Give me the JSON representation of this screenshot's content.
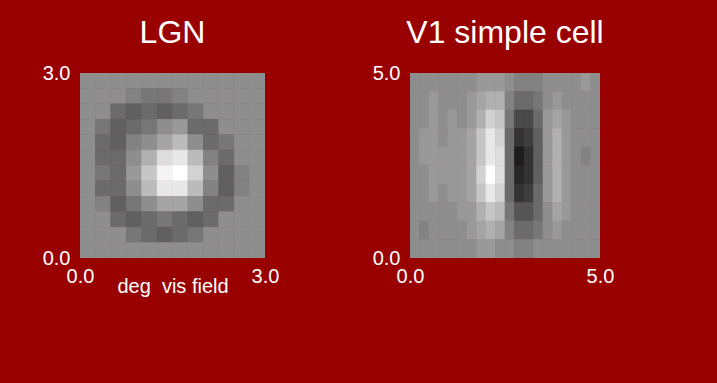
{
  "chart_data": [
    {
      "type": "heatmap",
      "title": "LGN",
      "x_label": "deg  vis field",
      "xlim": [
        0,
        3
      ],
      "ylim": [
        0,
        3
      ],
      "xticks": [
        0,
        3
      ],
      "yticks": [
        0,
        3
      ],
      "color_range": [
        -1,
        1
      ],
      "cells": [
        [
          0,
          0,
          0,
          0,
          0,
          0,
          0,
          0,
          0,
          0,
          0,
          0
        ],
        [
          0,
          0,
          0,
          -0.1,
          -0.2,
          -0.2,
          -0.1,
          0,
          0,
          0,
          0,
          0
        ],
        [
          0,
          0,
          -0.3,
          -0.4,
          -0.3,
          -0.4,
          -0.3,
          -0.2,
          0,
          0,
          0,
          0
        ],
        [
          0,
          -0.2,
          -0.4,
          -0.3,
          -0.2,
          0,
          0.1,
          -0.3,
          -0.3,
          0,
          0,
          0
        ],
        [
          0,
          -0.3,
          -0.4,
          -0.1,
          0,
          0.2,
          0.4,
          0,
          -0.3,
          -0.2,
          0,
          0
        ],
        [
          0,
          -0.3,
          -0.3,
          0,
          0.3,
          0.7,
          0.8,
          0.4,
          -0.1,
          -0.3,
          0,
          0
        ],
        [
          0,
          -0.2,
          -0.3,
          0.1,
          0.5,
          0.9,
          1.0,
          0.6,
          0,
          -0.4,
          -0.1,
          0
        ],
        [
          0,
          -0.3,
          -0.3,
          0,
          0.4,
          0.8,
          0.8,
          0.4,
          -0.1,
          -0.4,
          -0.1,
          0
        ],
        [
          0,
          -0.1,
          -0.4,
          -0.2,
          0,
          0.2,
          0.2,
          0,
          -0.3,
          -0.3,
          0,
          0
        ],
        [
          0,
          0,
          -0.3,
          -0.4,
          -0.3,
          -0.2,
          -0.3,
          -0.4,
          -0.3,
          0,
          0,
          0
        ],
        [
          0,
          0,
          0,
          -0.2,
          -0.3,
          -0.4,
          -0.3,
          -0.2,
          0,
          0,
          0,
          0
        ],
        [
          0,
          0,
          0,
          0,
          0,
          0,
          0,
          0,
          0,
          0,
          0,
          0
        ]
      ]
    },
    {
      "type": "heatmap",
      "title": "V1 simple cell",
      "xlim": [
        0,
        5
      ],
      "ylim": [
        0,
        5
      ],
      "xticks": [
        0,
        5
      ],
      "yticks": [
        0,
        5
      ],
      "color_range": [
        -1,
        1
      ],
      "cells": [
        [
          0,
          0,
          0,
          0,
          0,
          0,
          0,
          0.1,
          0.1,
          0.1,
          0,
          -0.1,
          -0.1,
          -0.1,
          0,
          0,
          0,
          0,
          0.1,
          0
        ],
        [
          0,
          0,
          0.1,
          0,
          0,
          0,
          0.1,
          0.2,
          0.3,
          0.3,
          -0.1,
          -0.3,
          -0.3,
          -0.2,
          0,
          0.1,
          0,
          0,
          0,
          0
        ],
        [
          0,
          0,
          0.1,
          0,
          0.1,
          0,
          0.1,
          0.3,
          0.6,
          0.5,
          -0.2,
          -0.6,
          -0.6,
          -0.3,
          0.1,
          0.2,
          0.1,
          0,
          0,
          0
        ],
        [
          0,
          0.1,
          0.1,
          0,
          0.1,
          0.1,
          0.2,
          0.5,
          0.8,
          0.6,
          -0.3,
          -0.8,
          -0.7,
          -0.4,
          0.1,
          0.3,
          0.1,
          0,
          0,
          0
        ],
        [
          0,
          0.1,
          0.1,
          0.1,
          0.1,
          0.1,
          0.2,
          0.5,
          0.8,
          0.7,
          -0.3,
          -1.0,
          -0.8,
          -0.4,
          0.1,
          0.3,
          0.1,
          0,
          -0.1,
          0
        ],
        [
          0,
          0,
          0.1,
          0.1,
          0.1,
          0.1,
          0.2,
          0.6,
          1.0,
          0.7,
          -0.3,
          -0.9,
          -0.8,
          -0.4,
          0.1,
          0.3,
          0.1,
          0,
          0,
          0
        ],
        [
          0,
          0,
          0.1,
          0,
          0.1,
          0.1,
          0.2,
          0.5,
          0.8,
          0.6,
          -0.3,
          -0.8,
          -0.7,
          -0.3,
          0.1,
          0.3,
          0.1,
          0,
          0,
          0
        ],
        [
          0,
          0,
          0,
          0,
          0,
          0.1,
          0.1,
          0.3,
          0.5,
          0.4,
          -0.2,
          -0.5,
          -0.5,
          -0.3,
          0,
          0.2,
          0.1,
          0,
          0,
          0
        ],
        [
          0,
          -0.1,
          0,
          0,
          0,
          0,
          0.1,
          0.2,
          0.3,
          0.2,
          -0.1,
          -0.3,
          -0.3,
          -0.2,
          0,
          0.1,
          0,
          0,
          0,
          0
        ],
        [
          0,
          0,
          0,
          0,
          0,
          0,
          0,
          0.1,
          0.1,
          0,
          0,
          -0.1,
          -0.1,
          0,
          0,
          0,
          0,
          0,
          0,
          0
        ]
      ]
    }
  ]
}
